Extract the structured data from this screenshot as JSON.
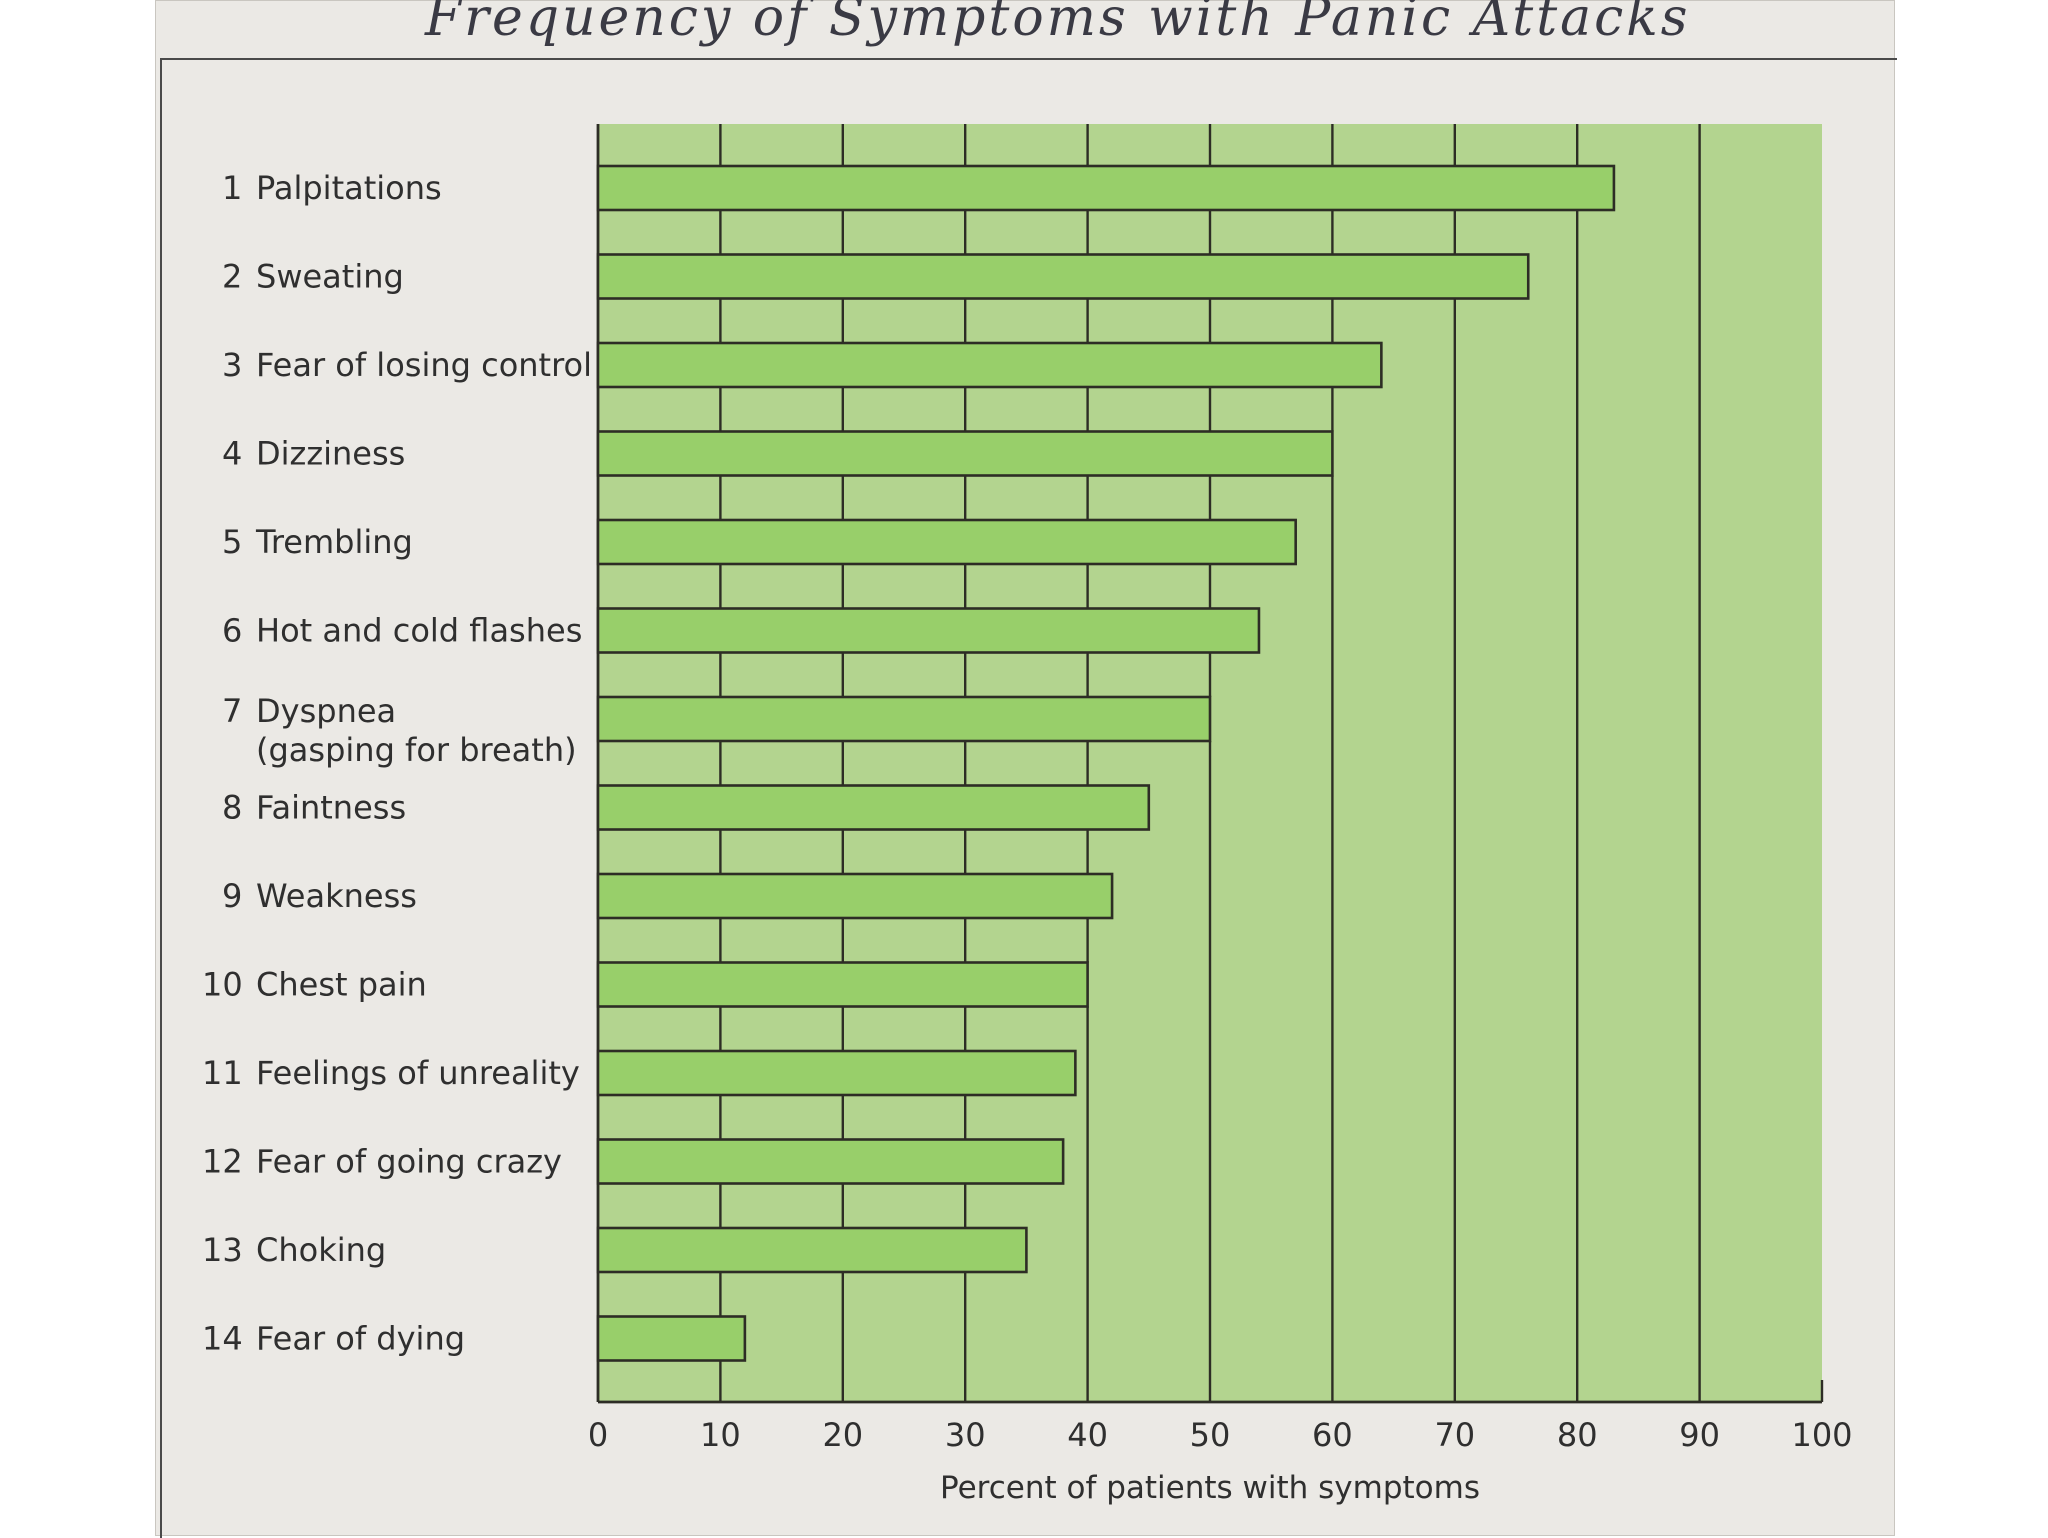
{
  "chart_data": {
    "type": "bar",
    "orientation": "horizontal",
    "title": "Frequency of Symptoms with Panic Attacks",
    "xlabel": "Percent of patients with symptoms",
    "ylabel": "",
    "xlim": [
      0,
      100
    ],
    "grid": true,
    "categories": [
      [
        "1",
        "Palpitations"
      ],
      [
        "2",
        "Sweating"
      ],
      [
        "3",
        "Fear of losing control"
      ],
      [
        "4",
        "Dizziness"
      ],
      [
        "5",
        "Trembling"
      ],
      [
        "6",
        "Hot and cold flashes"
      ],
      [
        "7",
        "Dyspnea",
        "(gasping for breath)"
      ],
      [
        "8",
        "Faintness"
      ],
      [
        "9",
        "Weakness"
      ],
      [
        "10",
        "Chest pain"
      ],
      [
        "11",
        "Feelings of unreality"
      ],
      [
        "12",
        "Fear of going crazy"
      ],
      [
        "13",
        "Choking"
      ],
      [
        "14",
        "Fear of dying"
      ]
    ],
    "values": [
      83,
      76,
      64,
      60,
      57,
      54,
      50,
      45,
      42,
      40,
      39,
      38,
      35,
      12
    ],
    "xticks": [
      "0",
      "10",
      "20",
      "30",
      "40",
      "50",
      "60",
      "70",
      "80",
      "90",
      "100"
    ],
    "colors": {
      "plot_background": "#b3d48f",
      "bar_fill": "#98cf6a",
      "bar_stroke": "#2d2d25",
      "grid": "#2d2d25",
      "label_text": "#2f2f2f"
    }
  }
}
